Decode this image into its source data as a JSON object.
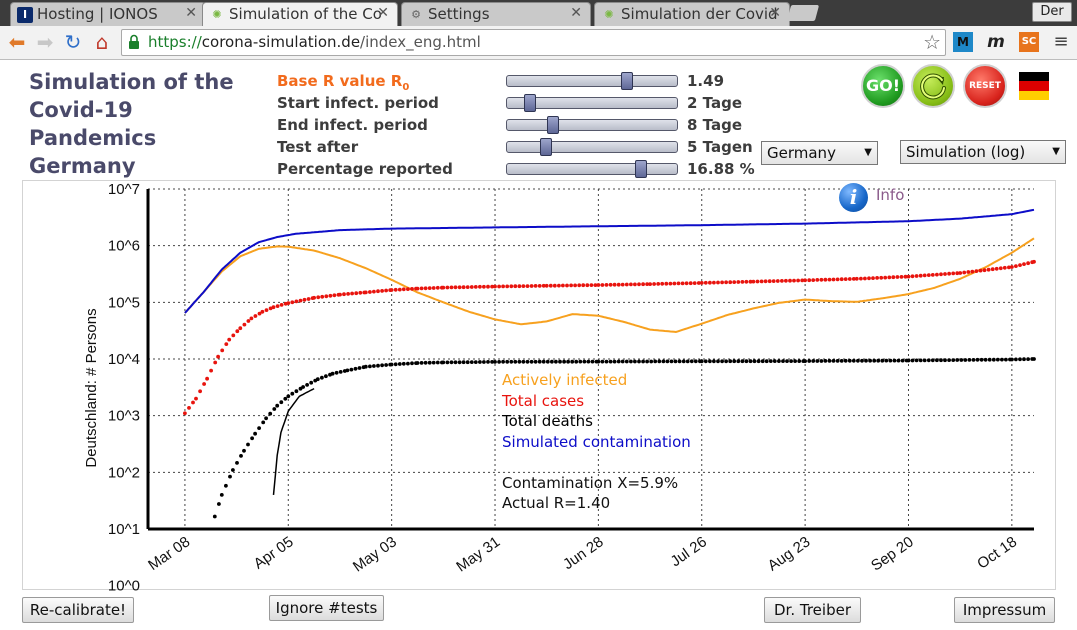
{
  "browser": {
    "tabs": [
      {
        "title": "Hosting | IONOS",
        "icon": "ionos-icon",
        "icon_text": "I"
      },
      {
        "title": "Simulation of the Co",
        "icon": "virus-icon"
      },
      {
        "title": "Settings",
        "icon": "gear-icon"
      },
      {
        "title": "Simulation der Covid",
        "icon": "virus-icon"
      }
    ],
    "user_label": "Der",
    "url_protocol": "https://",
    "url_host": "corona-simulation.de",
    "url_path": "/index_eng.html",
    "extensions": [
      {
        "icon": "m-square-icon",
        "text": "M",
        "color": "#1e88c8"
      },
      {
        "icon": "m-italic-icon",
        "text": "m",
        "color": "#222222"
      },
      {
        "icon": "sc-icon",
        "text": "SC",
        "color": "#e8741c"
      }
    ]
  },
  "app": {
    "title": "Simulation of the Covid-19 Pandemics Germany"
  },
  "params": [
    {
      "label": "Base R value R",
      "label_sub": "0",
      "value": "1.49",
      "level": 0.72,
      "highlight": true
    },
    {
      "label": "Start infect. period",
      "value": "2 Tage",
      "level": 0.11,
      "highlight": false
    },
    {
      "label": "End infect. period",
      "value": "8 Tage",
      "level": 0.25,
      "highlight": false
    },
    {
      "label": "Test after",
      "value": "5 Tagen",
      "level": 0.21,
      "highlight": false
    },
    {
      "label": "Percentage reported",
      "value": "16.88 %",
      "level": 0.81,
      "highlight": false
    }
  ],
  "buttons": {
    "go": "GO!",
    "reset": "RESET",
    "recalibrate": "Re-calibrate!",
    "ignore_tests": "Ignore #tests",
    "dr_treiber": "Dr. Treiber",
    "impressum": "Impressum",
    "info": "Info"
  },
  "selects": {
    "country": "Germany",
    "mode": "Simulation (log)"
  },
  "colors": {
    "accent_orange": "#f26b1d",
    "go_green": "#2fb82f",
    "reload_green": "#8dc51e",
    "reset_red": "#d8231c",
    "active": "#f7a11f",
    "cases": "#e8140e",
    "deaths": "#000000",
    "contamination": "#0d0dc8"
  },
  "stats": {
    "contamination": "Contamination X=5.9%",
    "actual_r": "Actual R=1.40"
  },
  "chart_data": {
    "type": "line",
    "scale": "log",
    "ylabel": "Deutschland: # Persons",
    "ylim": [
      1,
      10000000
    ],
    "y_ticks": [
      "10^0",
      "10^1",
      "10^2",
      "10^3",
      "10^4",
      "10^5",
      "10^6",
      "10^7"
    ],
    "x_range_days": [
      -10,
      230
    ],
    "x_ticks": [
      {
        "day": 0,
        "label": "Mar 08"
      },
      {
        "day": 28,
        "label": "Apr 05"
      },
      {
        "day": 56,
        "label": "May 03"
      },
      {
        "day": 84,
        "label": "May 31"
      },
      {
        "day": 112,
        "label": "Jun 28"
      },
      {
        "day": 140,
        "label": "Jul 26"
      },
      {
        "day": 168,
        "label": "Aug 23"
      },
      {
        "day": 196,
        "label": "Sep 20"
      },
      {
        "day": 224,
        "label": "Oct 18"
      }
    ],
    "grid": true,
    "series": [
      {
        "name": "Actively infected",
        "style": "line",
        "color": "#f7a11f",
        "points": [
          [
            0,
            65000
          ],
          [
            5,
            150000
          ],
          [
            10,
            350000
          ],
          [
            15,
            650000
          ],
          [
            20,
            880000
          ],
          [
            25,
            970000
          ],
          [
            28,
            960000
          ],
          [
            35,
            820000
          ],
          [
            42,
            600000
          ],
          [
            49,
            400000
          ],
          [
            56,
            250000
          ],
          [
            63,
            150000
          ],
          [
            70,
            100000
          ],
          [
            77,
            68000
          ],
          [
            84,
            50000
          ],
          [
            91,
            41000
          ],
          [
            98,
            46000
          ],
          [
            105,
            62000
          ],
          [
            112,
            58000
          ],
          [
            119,
            45000
          ],
          [
            126,
            33000
          ],
          [
            133,
            30000
          ],
          [
            140,
            42000
          ],
          [
            147,
            60000
          ],
          [
            154,
            78000
          ],
          [
            161,
            98000
          ],
          [
            168,
            112000
          ],
          [
            175,
            105000
          ],
          [
            182,
            102000
          ],
          [
            189,
            118000
          ],
          [
            196,
            140000
          ],
          [
            203,
            180000
          ],
          [
            210,
            260000
          ],
          [
            217,
            420000
          ],
          [
            224,
            750000
          ],
          [
            230,
            1350000
          ]
        ]
      },
      {
        "name": "Total cases",
        "style": "dots",
        "color": "#e8140e",
        "points": [
          [
            0,
            1100
          ],
          [
            3,
            2000
          ],
          [
            6,
            4500
          ],
          [
            9,
            11000
          ],
          [
            12,
            22000
          ],
          [
            15,
            35000
          ],
          [
            18,
            52000
          ],
          [
            21,
            68000
          ],
          [
            24,
            82000
          ],
          [
            28,
            97000
          ],
          [
            35,
            120000
          ],
          [
            42,
            137000
          ],
          [
            49,
            150000
          ],
          [
            56,
            165000
          ],
          [
            63,
            175000
          ],
          [
            70,
            182000
          ],
          [
            84,
            190000
          ],
          [
            98,
            196000
          ],
          [
            112,
            202000
          ],
          [
            126,
            210000
          ],
          [
            140,
            220000
          ],
          [
            154,
            232000
          ],
          [
            168,
            245000
          ],
          [
            182,
            260000
          ],
          [
            196,
            285000
          ],
          [
            210,
            330000
          ],
          [
            224,
            420000
          ],
          [
            230,
            520000
          ]
        ]
      },
      {
        "name": "Total deaths",
        "style": "dots",
        "color": "#000000",
        "points": [
          [
            7,
            10
          ],
          [
            10,
            40
          ],
          [
            13,
            110
          ],
          [
            16,
            240
          ],
          [
            19,
            480
          ],
          [
            22,
            900
          ],
          [
            25,
            1500
          ],
          [
            28,
            2200
          ],
          [
            32,
            3200
          ],
          [
            36,
            4400
          ],
          [
            40,
            5500
          ],
          [
            44,
            6300
          ],
          [
            49,
            7300
          ],
          [
            56,
            8000
          ],
          [
            63,
            8500
          ],
          [
            70,
            8700
          ],
          [
            84,
            8900
          ],
          [
            112,
            9000
          ],
          [
            140,
            9100
          ],
          [
            168,
            9200
          ],
          [
            196,
            9400
          ],
          [
            224,
            9800
          ],
          [
            230,
            10000
          ]
        ]
      },
      {
        "name": "Simulated contamination",
        "style": "line",
        "color": "#0d0dc8",
        "points": [
          [
            0,
            65000
          ],
          [
            5,
            150000
          ],
          [
            10,
            380000
          ],
          [
            15,
            750000
          ],
          [
            20,
            1150000
          ],
          [
            25,
            1420000
          ],
          [
            30,
            1620000
          ],
          [
            42,
            1880000
          ],
          [
            56,
            2000000
          ],
          [
            84,
            2100000
          ],
          [
            112,
            2200000
          ],
          [
            140,
            2300000
          ],
          [
            168,
            2450000
          ],
          [
            196,
            2700000
          ],
          [
            210,
            3000000
          ],
          [
            224,
            3600000
          ],
          [
            230,
            4300000
          ]
        ]
      },
      {
        "name": "",
        "style": "line",
        "color": "#000000",
        "points": [
          [
            24,
            40
          ],
          [
            25,
            200
          ],
          [
            26,
            500
          ],
          [
            28,
            1200
          ],
          [
            31,
            2200
          ],
          [
            35,
            3000
          ]
        ]
      }
    ]
  }
}
